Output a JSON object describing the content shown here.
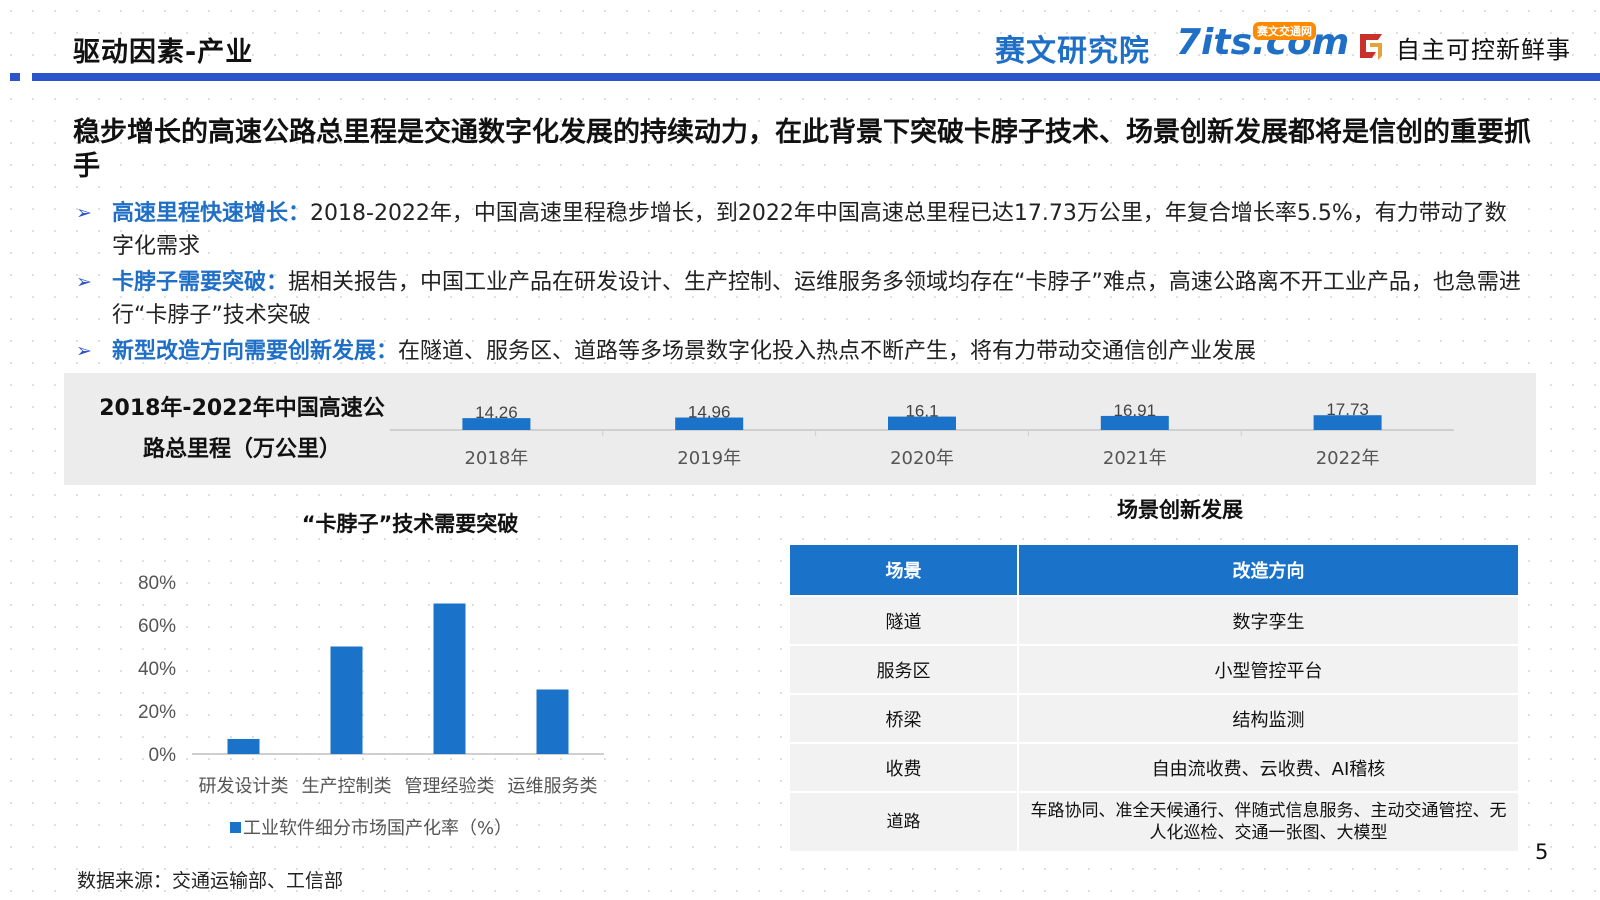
{
  "header": {
    "section_title": "驱动因素-产业",
    "logo_text": "赛文研究院",
    "logo_site": "7its.com",
    "logo_site_tag": "赛文交通网",
    "brand_name": "自主可控新鲜事",
    "accent_color": "#2b55c8"
  },
  "headline": "稳步增长的高速公路总里程是交通数字化发展的持续动力，在此背景下突破卡脖子技术、场景创新发展都将是信创的重要抓手",
  "bullets": [
    {
      "key": "高速里程快速增长：",
      "text": "2018-2022年，中国高速里程稳步增长，到2022年中国高速总里程已达17.73万公里，年复合增长率5.5%，有力带动了数字化需求"
    },
    {
      "key": "卡脖子需要突破：",
      "text": "据相关报告，中国工业产品在研发设计、生产控制、运维服务多领域均存在“卡脖子”难点，高速公路离不开工业产品，也急需进行“卡脖子”技术突破"
    },
    {
      "key": "新型改造方向需要创新发展：",
      "text": "在隧道、服务区、道路等多场景数字化投入热点不断产生，将有力带动交通信创产业发展"
    }
  ],
  "mileage_title": "2018年-2022年中国高速公路总里程（万公里）",
  "chart_data": [
    {
      "type": "bar",
      "title": "2018年-2022年中国高速公路总里程（万公里）",
      "categories": [
        "2018年",
        "2019年",
        "2020年",
        "2021年",
        "2022年"
      ],
      "values": [
        14.26,
        14.96,
        16.1,
        16.91,
        17.73
      ],
      "data_labels": [
        "14.26",
        "14.96",
        "16.1",
        "16.91",
        "17.73"
      ],
      "color": "#1a73c9",
      "ylim": [
        0,
        120
      ],
      "grid": false,
      "legend": "none"
    },
    {
      "type": "bar",
      "title": "“卡脖子”技术需要突破",
      "categories": [
        "研发设计类",
        "生产控制类",
        "管理经验类",
        "运维服务类"
      ],
      "series": [
        {
          "name": "工业软件细分市场国产化率（%）",
          "values": [
            7,
            50,
            70,
            30
          ]
        }
      ],
      "yticks": [
        "0%",
        "20%",
        "40%",
        "60%",
        "80%"
      ],
      "ylim": [
        0,
        80
      ],
      "color": "#1a73c9",
      "grid": false,
      "legend": "bottom"
    }
  ],
  "table": {
    "title": "场景创新发展",
    "headers": [
      "场景",
      "改造方向"
    ],
    "rows": [
      [
        "隧道",
        "数字孪生"
      ],
      [
        "服务区",
        "小型管控平台"
      ],
      [
        "桥梁",
        "结构监测"
      ],
      [
        "收费",
        "自由流收费、云收费、AI稽核"
      ],
      [
        "道路",
        "车路协同、准全天候通行、伴随式信息服务、主动交通管控、无人化巡检、交通一张图、大模型"
      ]
    ]
  },
  "page_number": "5",
  "source_note": "数据来源：交通运输部、工信部"
}
